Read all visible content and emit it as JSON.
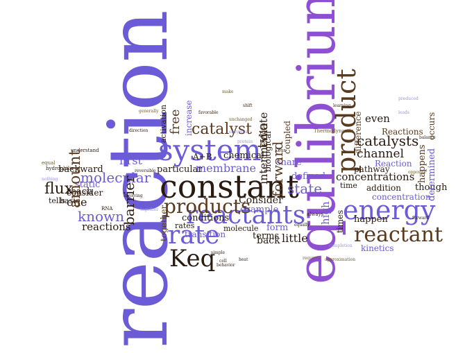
{
  "colors": {
    "purple": "#6b5bd6",
    "violet": "#8e4fd3",
    "brown": "#5a3a1e",
    "dark": "#2a1a10",
    "olive": "#6e5a2c",
    "lavender": "#9b93d8"
  },
  "words": {
    "reaction": "reaction",
    "equilibrium": "equilibrium",
    "constant": "constant",
    "system": "system",
    "energy": "energy",
    "rate": "rate",
    "product": "product",
    "reactants": "reactants",
    "products": "products",
    "reactant": "reactant",
    "keq": "Keq",
    "catalyst": "catalyst",
    "catalysts": "catalysts",
    "concentrations": "concentrations",
    "membrane": "membrane",
    "state": "state",
    "molecular": "molecular",
    "known": "known",
    "flux": "flux",
    "amount": "amount",
    "barrier": "barrier",
    "forward": "forward",
    "two": "two",
    "free": "free",
    "first": "first",
    "reactions": "reactions",
    "channel": "channel",
    "kinetics": "kinetics",
    "concentration": "concentration",
    "happen": "happen",
    "little": "little",
    "back": "back",
    "even": "even",
    "determined": "determined",
    "happens": "happens",
    "difference": "difference",
    "intermediate": "intermediate",
    "consider_cap": "Consider",
    "example": "example",
    "defined": "defined",
    "share": "share",
    "pathway": "pathway",
    "addition": "addition",
    "though": "though",
    "times": "times",
    "time": "time",
    "backward": "backward",
    "static": "static",
    "reach": "reach",
    "one": "one",
    "consider": "consider",
    "basic": "basic",
    "tells": "tells",
    "particular": "particular",
    "conditions": "conditions",
    "together": "together",
    "rates": "rates",
    "transition": "transition",
    "chemical": "chemical",
    "molecule": "molecule",
    "aplusb": "A+B",
    "increase": "increase",
    "activation": "activation",
    "coupled": "coupled",
    "biological": "biological",
    "high": "high",
    "form": "form",
    "terms": "terms",
    "reaction_cap": "Reaction",
    "reactions_cap": "Reactions",
    "occurs": "occurs",
    "thermodynamic": "Thermodynamic",
    "understand": "understand",
    "hydrophilic": "hydrophilic",
    "rna": "RNA",
    "equal": "equal",
    "nothing": "nothing",
    "always": "always",
    "approximation": "approximation",
    "completion": "completion",
    "cell": "cell",
    "less": "Less",
    "favorable": "favorable",
    "enzymes": "enzymes",
    "behavior": "behavior",
    "leads": "leads",
    "make": "make",
    "shift": "shift",
    "direction": "direction",
    "generally": "generally",
    "reversible": "reversible",
    "protein": "protein",
    "equally": "equally",
    "balance": "balance",
    "produced": "produced",
    "learning": "learning",
    "involving": "involving",
    "requires": "requires",
    "opposite": "opposite",
    "together2": "together",
    "unchanged": "unchanged",
    "simple": "simple",
    "heat": "heat",
    "forward2": "forward"
  }
}
